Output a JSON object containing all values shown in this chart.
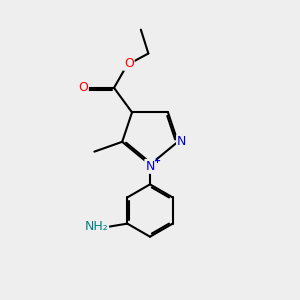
{
  "bg_color": "#eeeeee",
  "bond_color": "#000000",
  "bond_lw": 1.5,
  "atom_colors": {
    "O": "#ff0000",
    "N": "#0000cd",
    "NH2": "#008080",
    "C": "#000000"
  },
  "font_size_atom": 9,
  "figsize": [
    3.0,
    3.0
  ],
  "dpi": 100
}
